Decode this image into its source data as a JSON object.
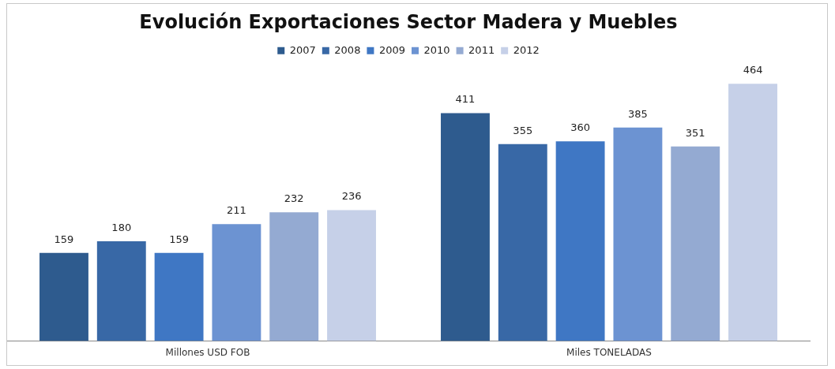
{
  "chart_data": {
    "type": "bar",
    "title": "Evolución Exportaciones Sector Madera y Muebles",
    "categories": [
      "Millones USD FOB",
      "Miles TONELADAS"
    ],
    "series": [
      {
        "name": "2007",
        "color": "#2e5b8e",
        "values": [
          159,
          411
        ]
      },
      {
        "name": "2008",
        "color": "#3868a6",
        "values": [
          180,
          355
        ]
      },
      {
        "name": "2009",
        "color": "#3f77c4",
        "values": [
          159,
          360
        ]
      },
      {
        "name": "2010",
        "color": "#6c93d2",
        "values": [
          211,
          385
        ]
      },
      {
        "name": "2011",
        "color": "#94aad2",
        "values": [
          232,
          351
        ]
      },
      {
        "name": "2012",
        "color": "#c6d0e8",
        "values": [
          236,
          464
        ]
      }
    ],
    "data_labels": true,
    "legend": "top",
    "grid": false,
    "tick_labels": "x"
  }
}
